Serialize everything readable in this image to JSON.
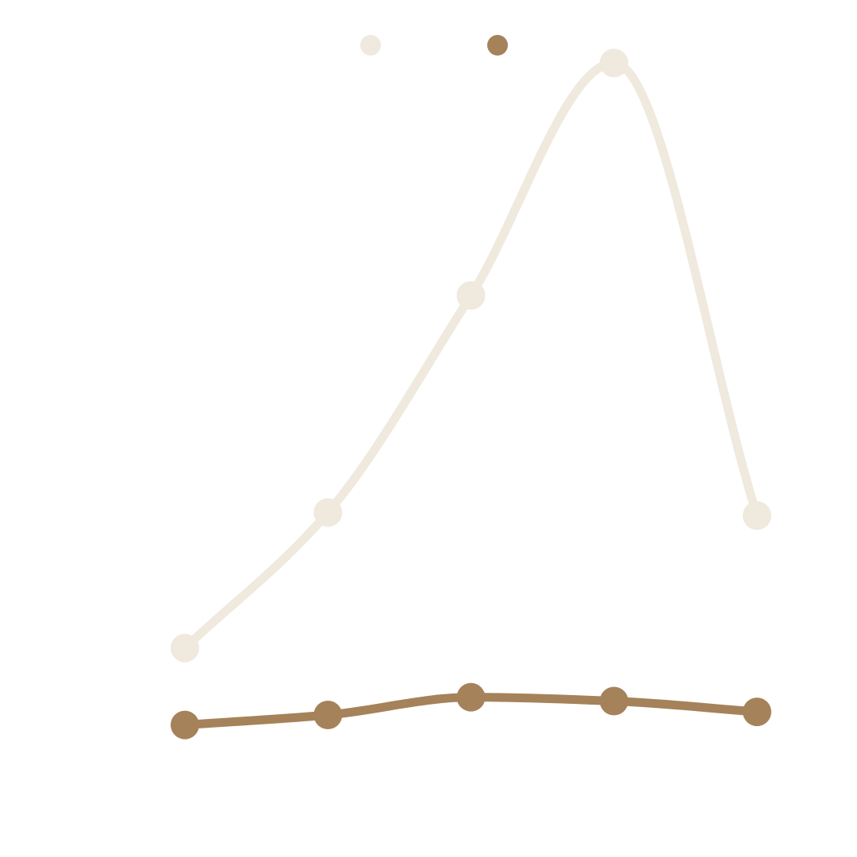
{
  "chart_data": {
    "type": "line",
    "title": "",
    "xlabel": "",
    "ylabel": "",
    "categories": [
      "",
      "",
      "",
      "",
      ""
    ],
    "ylim": [
      0,
      100
    ],
    "y_ticks": [
      "",
      "",
      "",
      "",
      "",
      "",
      ""
    ],
    "smooth": true,
    "grid": false,
    "legend": "top-center",
    "series": [
      {
        "name": "",
        "color": "#efe9de",
        "values": [
          22,
          39.6,
          67.8,
          98,
          39.2
        ]
      },
      {
        "name": "",
        "color": "#a5825a",
        "values": [
          12,
          13.3,
          15.6,
          15.1,
          13.7
        ]
      }
    ]
  }
}
